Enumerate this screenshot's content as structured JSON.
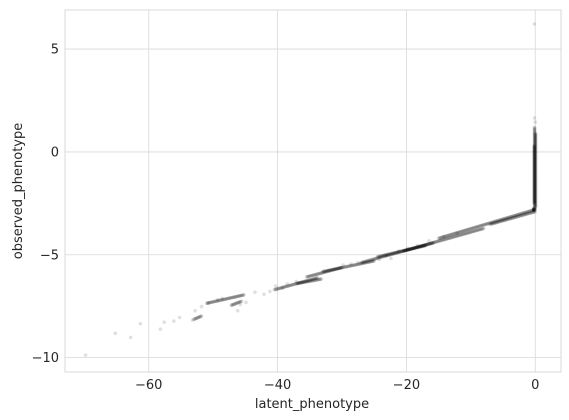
{
  "chart_data": {
    "type": "scatter",
    "title": "",
    "xlabel": "latent_phenotype",
    "ylabel": "observed_phenotype",
    "xlim": [
      -73,
      4
    ],
    "ylim": [
      -10.7,
      6.9
    ],
    "xticks": [
      -60,
      -40,
      -20,
      0
    ],
    "xtick_labels": [
      "−60",
      "−40",
      "−20",
      "0"
    ],
    "yticks": [
      -10,
      -5,
      0,
      5
    ],
    "ytick_labels": [
      "−10",
      "−5",
      "0",
      "5"
    ],
    "grid": true,
    "legend": "none",
    "point_color": "#000000",
    "point_alpha": 0.12,
    "grid_color": "#d9d9d9",
    "spine_color": "#d0d0d0",
    "points": [
      [
        -69.8,
        -9.88
      ],
      [
        -65.2,
        -8.82
      ],
      [
        -62.8,
        -9.02
      ],
      [
        -61.3,
        -8.35
      ],
      [
        -58.2,
        -8.62
      ],
      [
        -57.6,
        -8.28
      ],
      [
        -56.1,
        -8.22
      ],
      [
        -55.2,
        -8.05
      ],
      [
        -53.2,
        -8.18
      ],
      [
        -52.8,
        -7.72
      ],
      [
        -51.8,
        -7.52
      ],
      [
        -50.8,
        -7.35
      ],
      [
        -49.3,
        -7.18
      ],
      [
        -48.6,
        -7.12
      ],
      [
        -46.2,
        -7.72
      ],
      [
        -45.8,
        -7.42
      ],
      [
        -44.9,
        -7.32
      ],
      [
        -43.5,
        -6.82
      ],
      [
        -42.1,
        -6.92
      ],
      [
        -41.2,
        -6.78
      ],
      [
        -40.3,
        -6.52
      ],
      [
        -39.2,
        -6.62
      ],
      [
        -38.5,
        -6.42
      ],
      [
        -37.1,
        -6.3
      ],
      [
        -29.8,
        -5.5
      ],
      [
        -28.6,
        -5.45
      ],
      [
        -27.5,
        -5.38
      ],
      [
        -24.2,
        -5.22
      ],
      [
        -23.1,
        -5.05
      ],
      [
        -22.4,
        -5.18
      ],
      [
        -21.2,
        -4.82
      ],
      [
        -19.8,
        -4.68
      ],
      [
        -18.3,
        -4.55
      ],
      [
        -16.5,
        -4.32
      ],
      [
        -14.2,
        -4.12
      ],
      [
        -12.1,
        -3.95
      ],
      [
        -0.15,
        6.22
      ],
      [
        -0.1,
        1.65
      ],
      [
        0.02,
        1.45
      ]
    ],
    "segments": [
      {
        "x": [
          -53.0,
          -51.8
        ],
        "y": [
          -8.14,
          -7.98
        ]
      },
      {
        "x": [
          -51.0,
          -45.2
        ],
        "y": [
          -7.36,
          -6.95
        ]
      },
      {
        "x": [
          -47.2,
          -45.6
        ],
        "y": [
          -7.46,
          -7.26
        ]
      },
      {
        "x": [
          -40.5,
          -33.8
        ],
        "y": [
          -6.7,
          -6.12
        ]
      },
      {
        "x": [
          -37.0,
          -33.2
        ],
        "y": [
          -6.4,
          -6.18
        ]
      },
      {
        "x": [
          -35.5,
          -30.0
        ],
        "y": [
          -6.08,
          -5.62
        ]
      },
      {
        "x": [
          -33.0,
          -25.0
        ],
        "y": [
          -5.82,
          -5.3
        ]
      },
      {
        "x": [
          -27.0,
          -15.8
        ],
        "y": [
          -5.38,
          -4.42
        ]
      },
      {
        "x": [
          -24.5,
          -17.0
        ],
        "y": [
          -5.1,
          -4.55
        ]
      },
      {
        "x": [
          -20.5,
          -8.0
        ],
        "y": [
          -4.82,
          -3.72
        ]
      },
      {
        "x": [
          -15.0,
          0.0
        ],
        "y": [
          -4.2,
          -2.8
        ]
      },
      {
        "x": [
          -7.0,
          0.0
        ],
        "y": [
          -3.52,
          -2.9
        ]
      },
      {
        "x": [
          -0.25,
          -0.25
        ],
        "y": [
          -2.85,
          -2.75
        ]
      },
      {
        "x": [
          -0.1,
          -0.1
        ],
        "y": [
          -2.85,
          1.2
        ]
      },
      {
        "x": [
          0.05,
          0.05
        ],
        "y": [
          -2.7,
          0.9
        ]
      },
      {
        "x": [
          -0.15,
          -0.15
        ],
        "y": [
          -2.5,
          0.3
        ]
      }
    ]
  }
}
